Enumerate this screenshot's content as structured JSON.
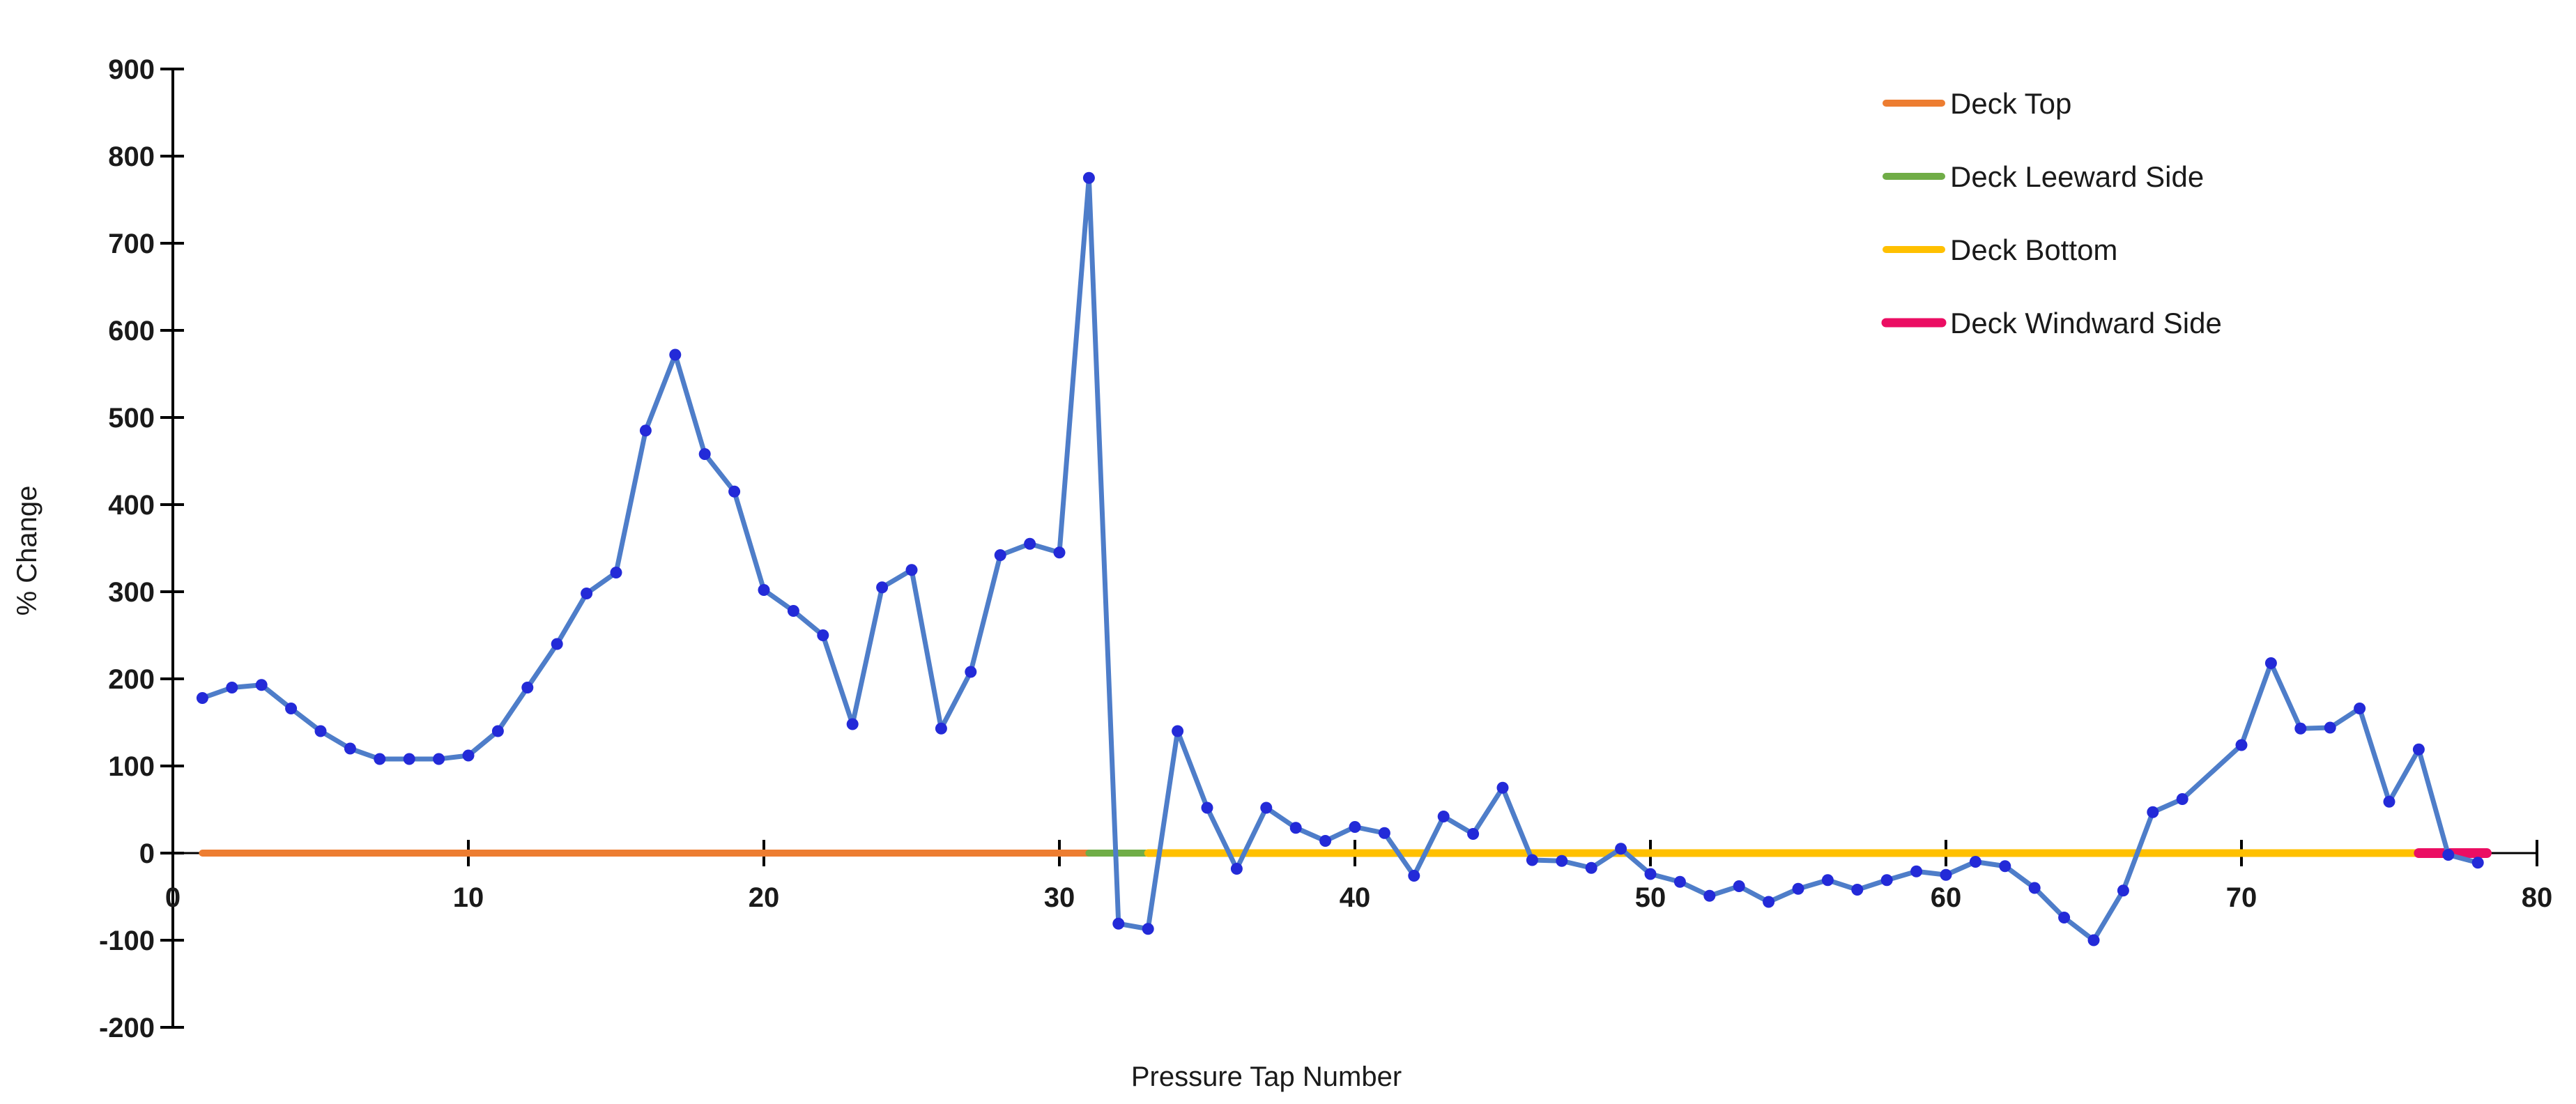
{
  "chart_data": {
    "type": "line",
    "title": "",
    "xlabel": "Pressure Tap Number",
    "ylabel": "% Change",
    "xlim": [
      0,
      80
    ],
    "ylim": [
      -200,
      900
    ],
    "xticks": [
      0,
      10,
      20,
      30,
      40,
      50,
      60,
      70,
      80
    ],
    "yticks": [
      -200,
      -100,
      0,
      100,
      200,
      300,
      400,
      500,
      600,
      700,
      800,
      900
    ],
    "grid": false,
    "legend_position": "top-right",
    "series": [
      {
        "name": "percent-change-by-tap",
        "x_start": 1,
        "values": [
          178,
          190,
          193,
          166,
          140,
          120,
          108,
          108,
          108,
          112,
          140,
          190,
          240,
          298,
          322,
          485,
          572,
          458,
          415,
          302,
          278,
          250,
          148,
          305,
          325,
          143,
          208,
          342,
          355,
          345,
          775,
          -81,
          -87,
          140,
          52,
          -18,
          52,
          29,
          14,
          30,
          23,
          -26,
          42,
          22,
          75,
          -8,
          -9,
          -17,
          5,
          -24,
          -33,
          -49,
          -38,
          -56,
          -41,
          -31,
          -42,
          -31,
          -21,
          -25,
          -10,
          -15,
          -40,
          -74,
          -100,
          -43,
          47,
          62,
          null,
          124,
          218,
          143,
          144,
          166,
          59,
          119,
          -2,
          -11
        ],
        "line_color": "#4E7DC9",
        "marker_color": "#232AD8"
      }
    ],
    "baseline_segments": [
      {
        "label": "Deck Top",
        "color": "#ED7D31",
        "x_start": 1,
        "x_end": 31,
        "thickness": 10
      },
      {
        "label": "Deck Leeward Side",
        "color": "#70AD47",
        "x_start": 31,
        "x_end": 33,
        "thickness": 10
      },
      {
        "label": "Deck Bottom",
        "color": "#FFC000",
        "x_start": 33,
        "x_end": 76,
        "thickness": 11
      },
      {
        "label": "Deck Windward Side",
        "color": "#EB0E63",
        "x_start": 76,
        "x_end": 78.3,
        "thickness": 14
      }
    ],
    "legend": [
      {
        "label": "Deck Top",
        "color": "#ED7D31"
      },
      {
        "label": "Deck Leeward Side",
        "color": "#70AD47"
      },
      {
        "label": "Deck Bottom",
        "color": "#FFC000"
      },
      {
        "label": "Deck Windward Side",
        "color": "#EB0E63"
      }
    ]
  },
  "axis_color": "#000000"
}
